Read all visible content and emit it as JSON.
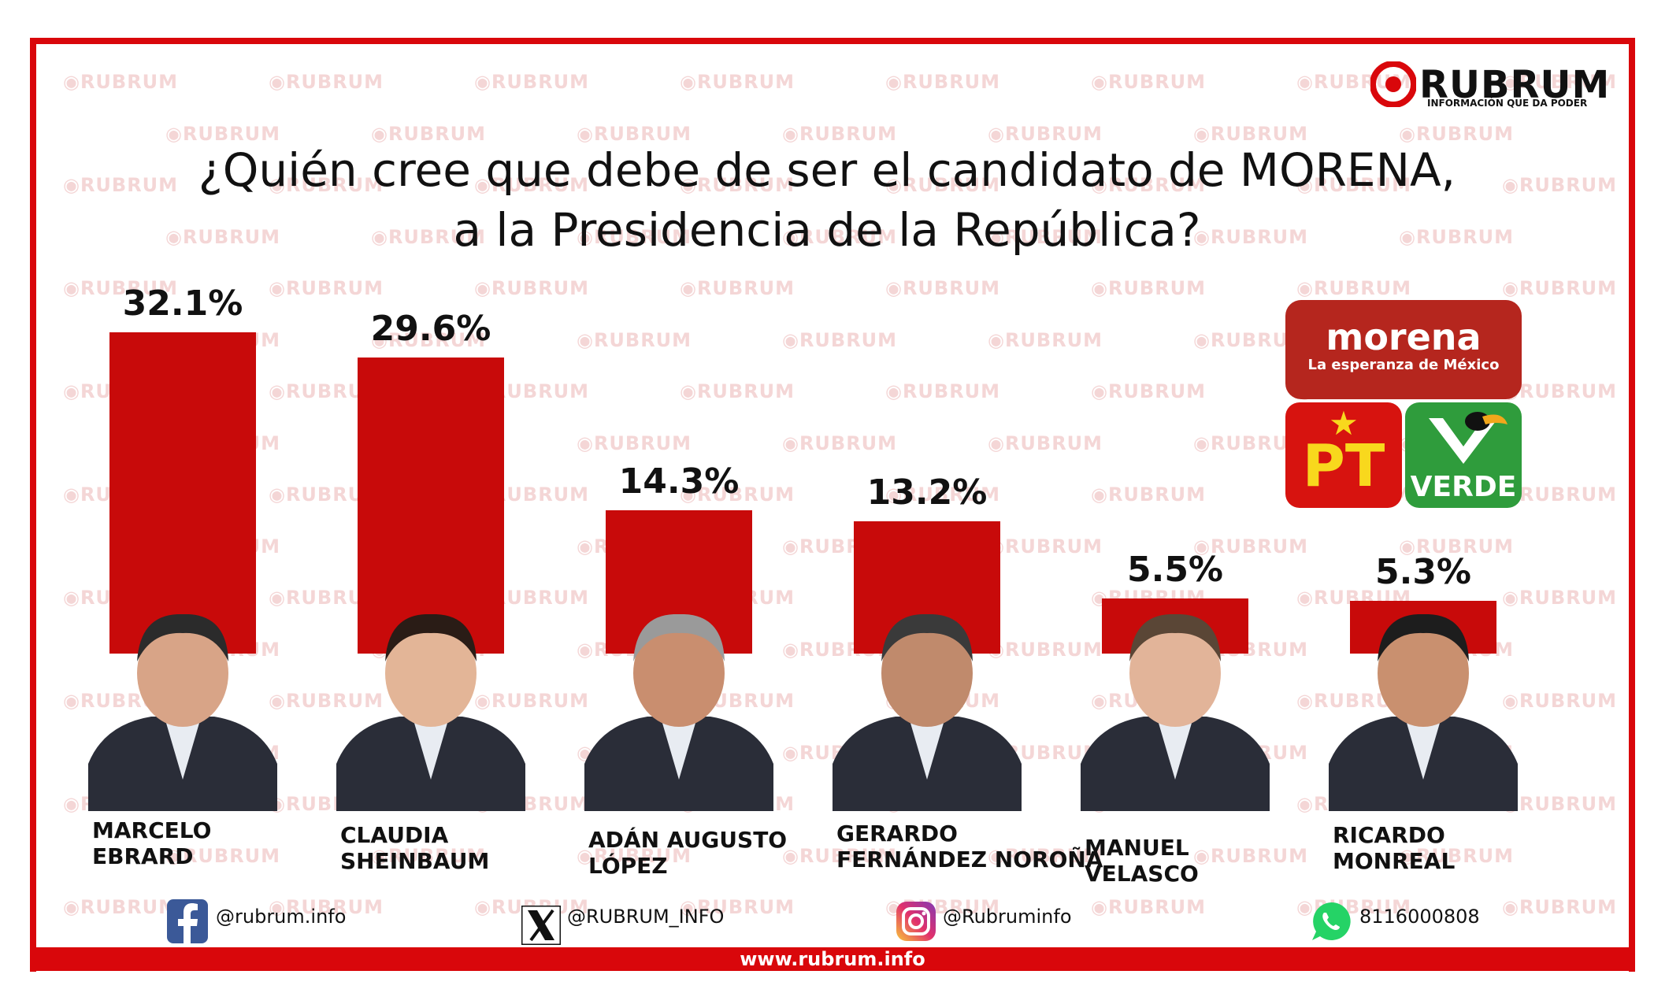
{
  "chart_data": {
    "type": "bar",
    "title": "¿Quién cree que debe de ser el candidato de MORENA,\na la Presidencia de la República?",
    "categories": [
      "MARCELO\nEBRARD",
      "CLAUDIA\nSHEINBAUM",
      "ADÁN AUGUSTO\nLÓPEZ",
      "GERARDO\nFERNÁNDEZ NOROÑA",
      "MANUEL\nVELASCO",
      "RICARDO\nMONREAL"
    ],
    "values": [
      32.1,
      29.6,
      14.3,
      13.2,
      5.5,
      5.3
    ],
    "labels": [
      "32.1%",
      "29.6%",
      "14.3%",
      "13.2%",
      "5.5%",
      "5.3%"
    ],
    "ylim": [
      0,
      32.1
    ],
    "grid": false,
    "bar_color": "#c80a0a"
  },
  "brand": {
    "name": "RUBRUM",
    "tagline": "INFORMACIÓN QUE DA PODER",
    "watermark": "RUBRUM",
    "accent": "#d9070b"
  },
  "parties": {
    "morena": "morena",
    "morena_slogan": "La esperanza de México",
    "pt": "PT",
    "verde": "VERDE"
  },
  "social": {
    "facebook": "@rubrum.info",
    "x": "@RUBRUM_INFO",
    "instagram": "@Rubruminfo",
    "whatsapp": "8116000808"
  },
  "footer": {
    "url": "www.rubrum.info"
  }
}
